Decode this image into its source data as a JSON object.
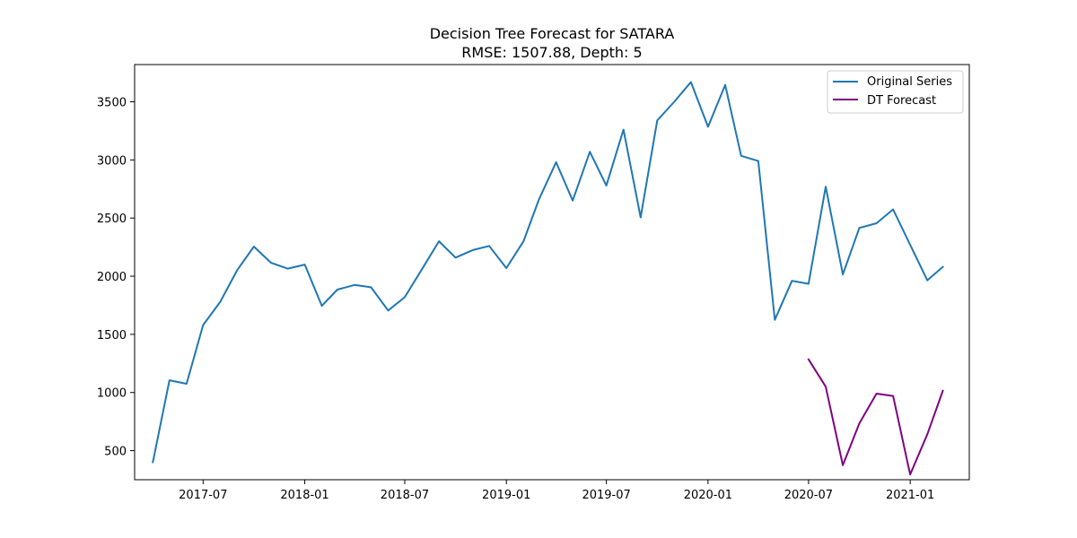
{
  "chart_data": {
    "type": "line",
    "title": "Decision Tree Forecast for SATARA",
    "subtitle": "RMSE: 1507.88, Depth: 5",
    "xlabel": "",
    "ylabel": "",
    "x_ticks": [
      "2017-07",
      "2018-01",
      "2018-07",
      "2019-01",
      "2019-07",
      "2020-01",
      "2020-07",
      "2021-01"
    ],
    "y_ticks": [
      "500",
      "1000",
      "1500",
      "2000",
      "2500",
      "3000",
      "3500"
    ],
    "ylim": [
      250,
      3820
    ],
    "xlim": [
      "2017-02-27",
      "2021-04-18"
    ],
    "grid": false,
    "legend_position": "top-right",
    "series": [
      {
        "name": "Original Series",
        "color": "#1f77b4",
        "points": [
          [
            "2017-04-01",
            400
          ],
          [
            "2017-05-01",
            1105
          ],
          [
            "2017-06-01",
            1075
          ],
          [
            "2017-07-01",
            1580
          ],
          [
            "2017-08-01",
            1780
          ],
          [
            "2017-09-01",
            2055
          ],
          [
            "2017-10-01",
            2255
          ],
          [
            "2017-11-01",
            2115
          ],
          [
            "2017-12-01",
            2065
          ],
          [
            "2018-01-01",
            2100
          ],
          [
            "2018-02-01",
            1745
          ],
          [
            "2018-03-01",
            1885
          ],
          [
            "2018-04-01",
            1925
          ],
          [
            "2018-05-01",
            1905
          ],
          [
            "2018-06-01",
            1705
          ],
          [
            "2018-07-01",
            1820
          ],
          [
            "2018-08-01",
            2060
          ],
          [
            "2018-09-01",
            2300
          ],
          [
            "2018-10-01",
            2160
          ],
          [
            "2018-11-01",
            2225
          ],
          [
            "2018-12-01",
            2260
          ],
          [
            "2019-01-01",
            2070
          ],
          [
            "2019-02-01",
            2300
          ],
          [
            "2019-03-01",
            2660
          ],
          [
            "2019-04-01",
            2980
          ],
          [
            "2019-05-01",
            2650
          ],
          [
            "2019-06-01",
            3070
          ],
          [
            "2019-07-01",
            2780
          ],
          [
            "2019-08-01",
            3260
          ],
          [
            "2019-09-01",
            2505
          ],
          [
            "2019-10-01",
            3340
          ],
          [
            "2019-11-01",
            3500
          ],
          [
            "2019-12-01",
            3670
          ],
          [
            "2020-01-01",
            3285
          ],
          [
            "2020-02-01",
            3645
          ],
          [
            "2020-03-01",
            3035
          ],
          [
            "2020-04-01",
            2990
          ],
          [
            "2020-05-01",
            1625
          ],
          [
            "2020-06-01",
            1960
          ],
          [
            "2020-07-01",
            1935
          ],
          [
            "2020-08-01",
            2770
          ],
          [
            "2020-09-01",
            2015
          ],
          [
            "2020-10-01",
            2415
          ],
          [
            "2020-11-01",
            2455
          ],
          [
            "2020-12-01",
            2575
          ],
          [
            "2021-01-01",
            2270
          ],
          [
            "2021-02-01",
            1965
          ],
          [
            "2021-03-01",
            2080
          ]
        ]
      },
      {
        "name": "DT Forecast",
        "color": "#800080",
        "points": [
          [
            "2020-07-01",
            1285
          ],
          [
            "2020-08-01",
            1050
          ],
          [
            "2020-09-01",
            375
          ],
          [
            "2020-10-01",
            735
          ],
          [
            "2020-11-01",
            990
          ],
          [
            "2020-12-01",
            970
          ],
          [
            "2021-01-01",
            295
          ],
          [
            "2021-02-01",
            640
          ],
          [
            "2021-03-01",
            1015
          ]
        ]
      }
    ]
  }
}
